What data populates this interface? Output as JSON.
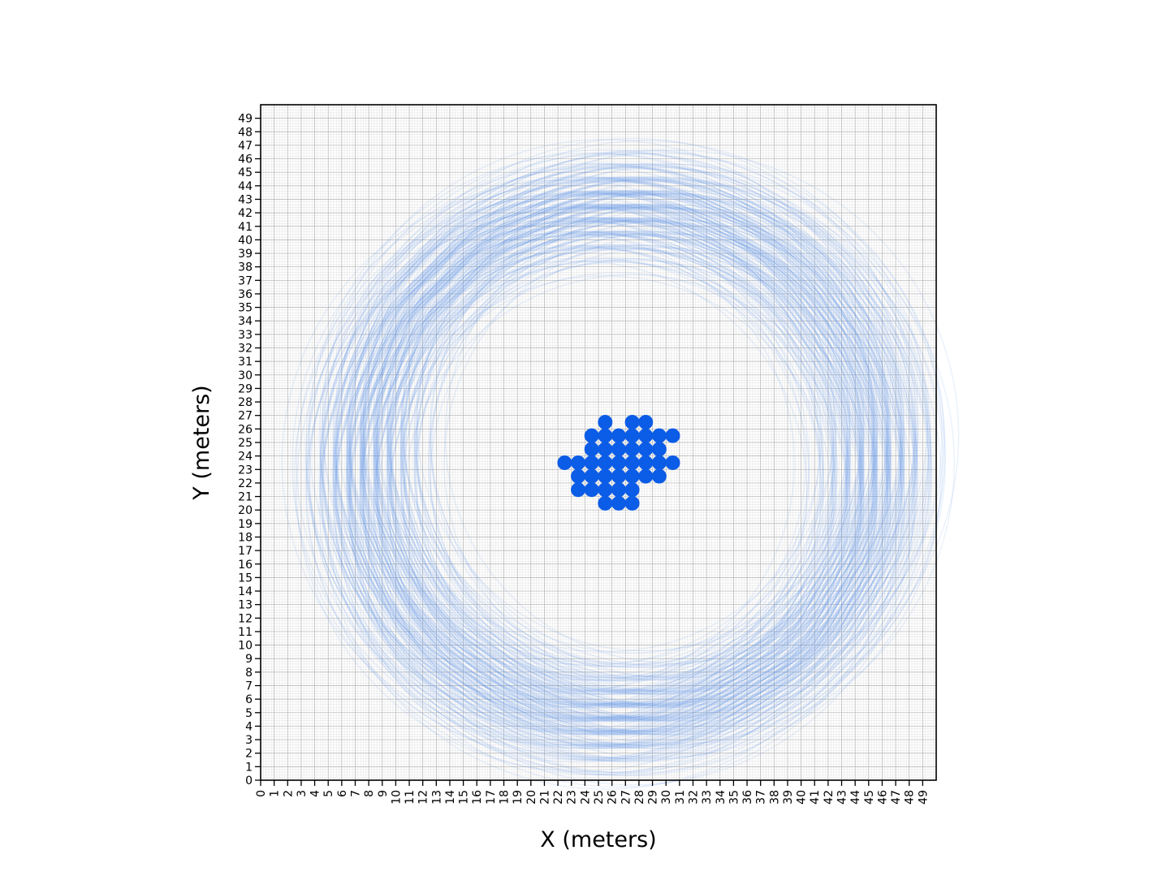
{
  "chart_data": {
    "type": "scatter",
    "title": "",
    "xlabel": "X (meters)",
    "ylabel": "Y (meters)",
    "xlim": [
      0,
      50
    ],
    "ylim": [
      0,
      50
    ],
    "xticks": [
      0,
      1,
      2,
      3,
      4,
      5,
      6,
      7,
      8,
      9,
      10,
      11,
      12,
      13,
      14,
      15,
      16,
      17,
      18,
      19,
      20,
      21,
      22,
      23,
      24,
      25,
      26,
      27,
      28,
      29,
      30,
      31,
      32,
      33,
      34,
      35,
      36,
      37,
      38,
      39,
      40,
      41,
      42,
      43,
      44,
      45,
      46,
      47,
      48,
      49
    ],
    "yticks": [
      0,
      1,
      2,
      3,
      4,
      5,
      6,
      7,
      8,
      9,
      10,
      11,
      12,
      13,
      14,
      15,
      16,
      17,
      18,
      19,
      20,
      21,
      22,
      23,
      24,
      25,
      26,
      27,
      28,
      29,
      30,
      31,
      32,
      33,
      34,
      35,
      36,
      37,
      38,
      39,
      40,
      41,
      42,
      43,
      44,
      45,
      46,
      47,
      48,
      49
    ],
    "grid": {
      "major": true,
      "minor": true
    },
    "colors": {
      "points": "#0b5ce6",
      "rings": "#5b8fe8",
      "grid_major": "#b0b0b0",
      "grid_minor": "#dcdcdc"
    },
    "points": [
      [
        25.5,
        26.5
      ],
      [
        27.5,
        26.5
      ],
      [
        28.5,
        26.5
      ],
      [
        24.5,
        25.5
      ],
      [
        25.5,
        25.5
      ],
      [
        26.5,
        25.5
      ],
      [
        27.5,
        25.5
      ],
      [
        28.5,
        25.5
      ],
      [
        29.5,
        25.5
      ],
      [
        30.5,
        25.5
      ],
      [
        24.5,
        24.5
      ],
      [
        25.5,
        24.5
      ],
      [
        26.5,
        24.5
      ],
      [
        27.5,
        24.5
      ],
      [
        28.5,
        24.5
      ],
      [
        29.5,
        24.5
      ],
      [
        22.5,
        23.5
      ],
      [
        23.5,
        23.5
      ],
      [
        24.5,
        23.5
      ],
      [
        25.5,
        23.5
      ],
      [
        26.5,
        23.5
      ],
      [
        27.5,
        23.5
      ],
      [
        28.5,
        23.5
      ],
      [
        29.5,
        23.5
      ],
      [
        30.5,
        23.5
      ],
      [
        23.5,
        22.5
      ],
      [
        24.5,
        22.5
      ],
      [
        25.5,
        22.5
      ],
      [
        26.5,
        22.5
      ],
      [
        27.5,
        22.5
      ],
      [
        28.5,
        22.5
      ],
      [
        29.5,
        22.5
      ],
      [
        23.5,
        21.5
      ],
      [
        24.5,
        21.5
      ],
      [
        25.5,
        21.5
      ],
      [
        26.5,
        21.5
      ],
      [
        27.5,
        21.5
      ],
      [
        25.5,
        20.5
      ],
      [
        26.5,
        20.5
      ],
      [
        27.5,
        20.5
      ]
    ],
    "rings": {
      "description": "translucent circles centered on each point",
      "radii": [
        17.0,
        18.0,
        19.0,
        20.0,
        21.0
      ],
      "opacity": 0.13
    }
  }
}
